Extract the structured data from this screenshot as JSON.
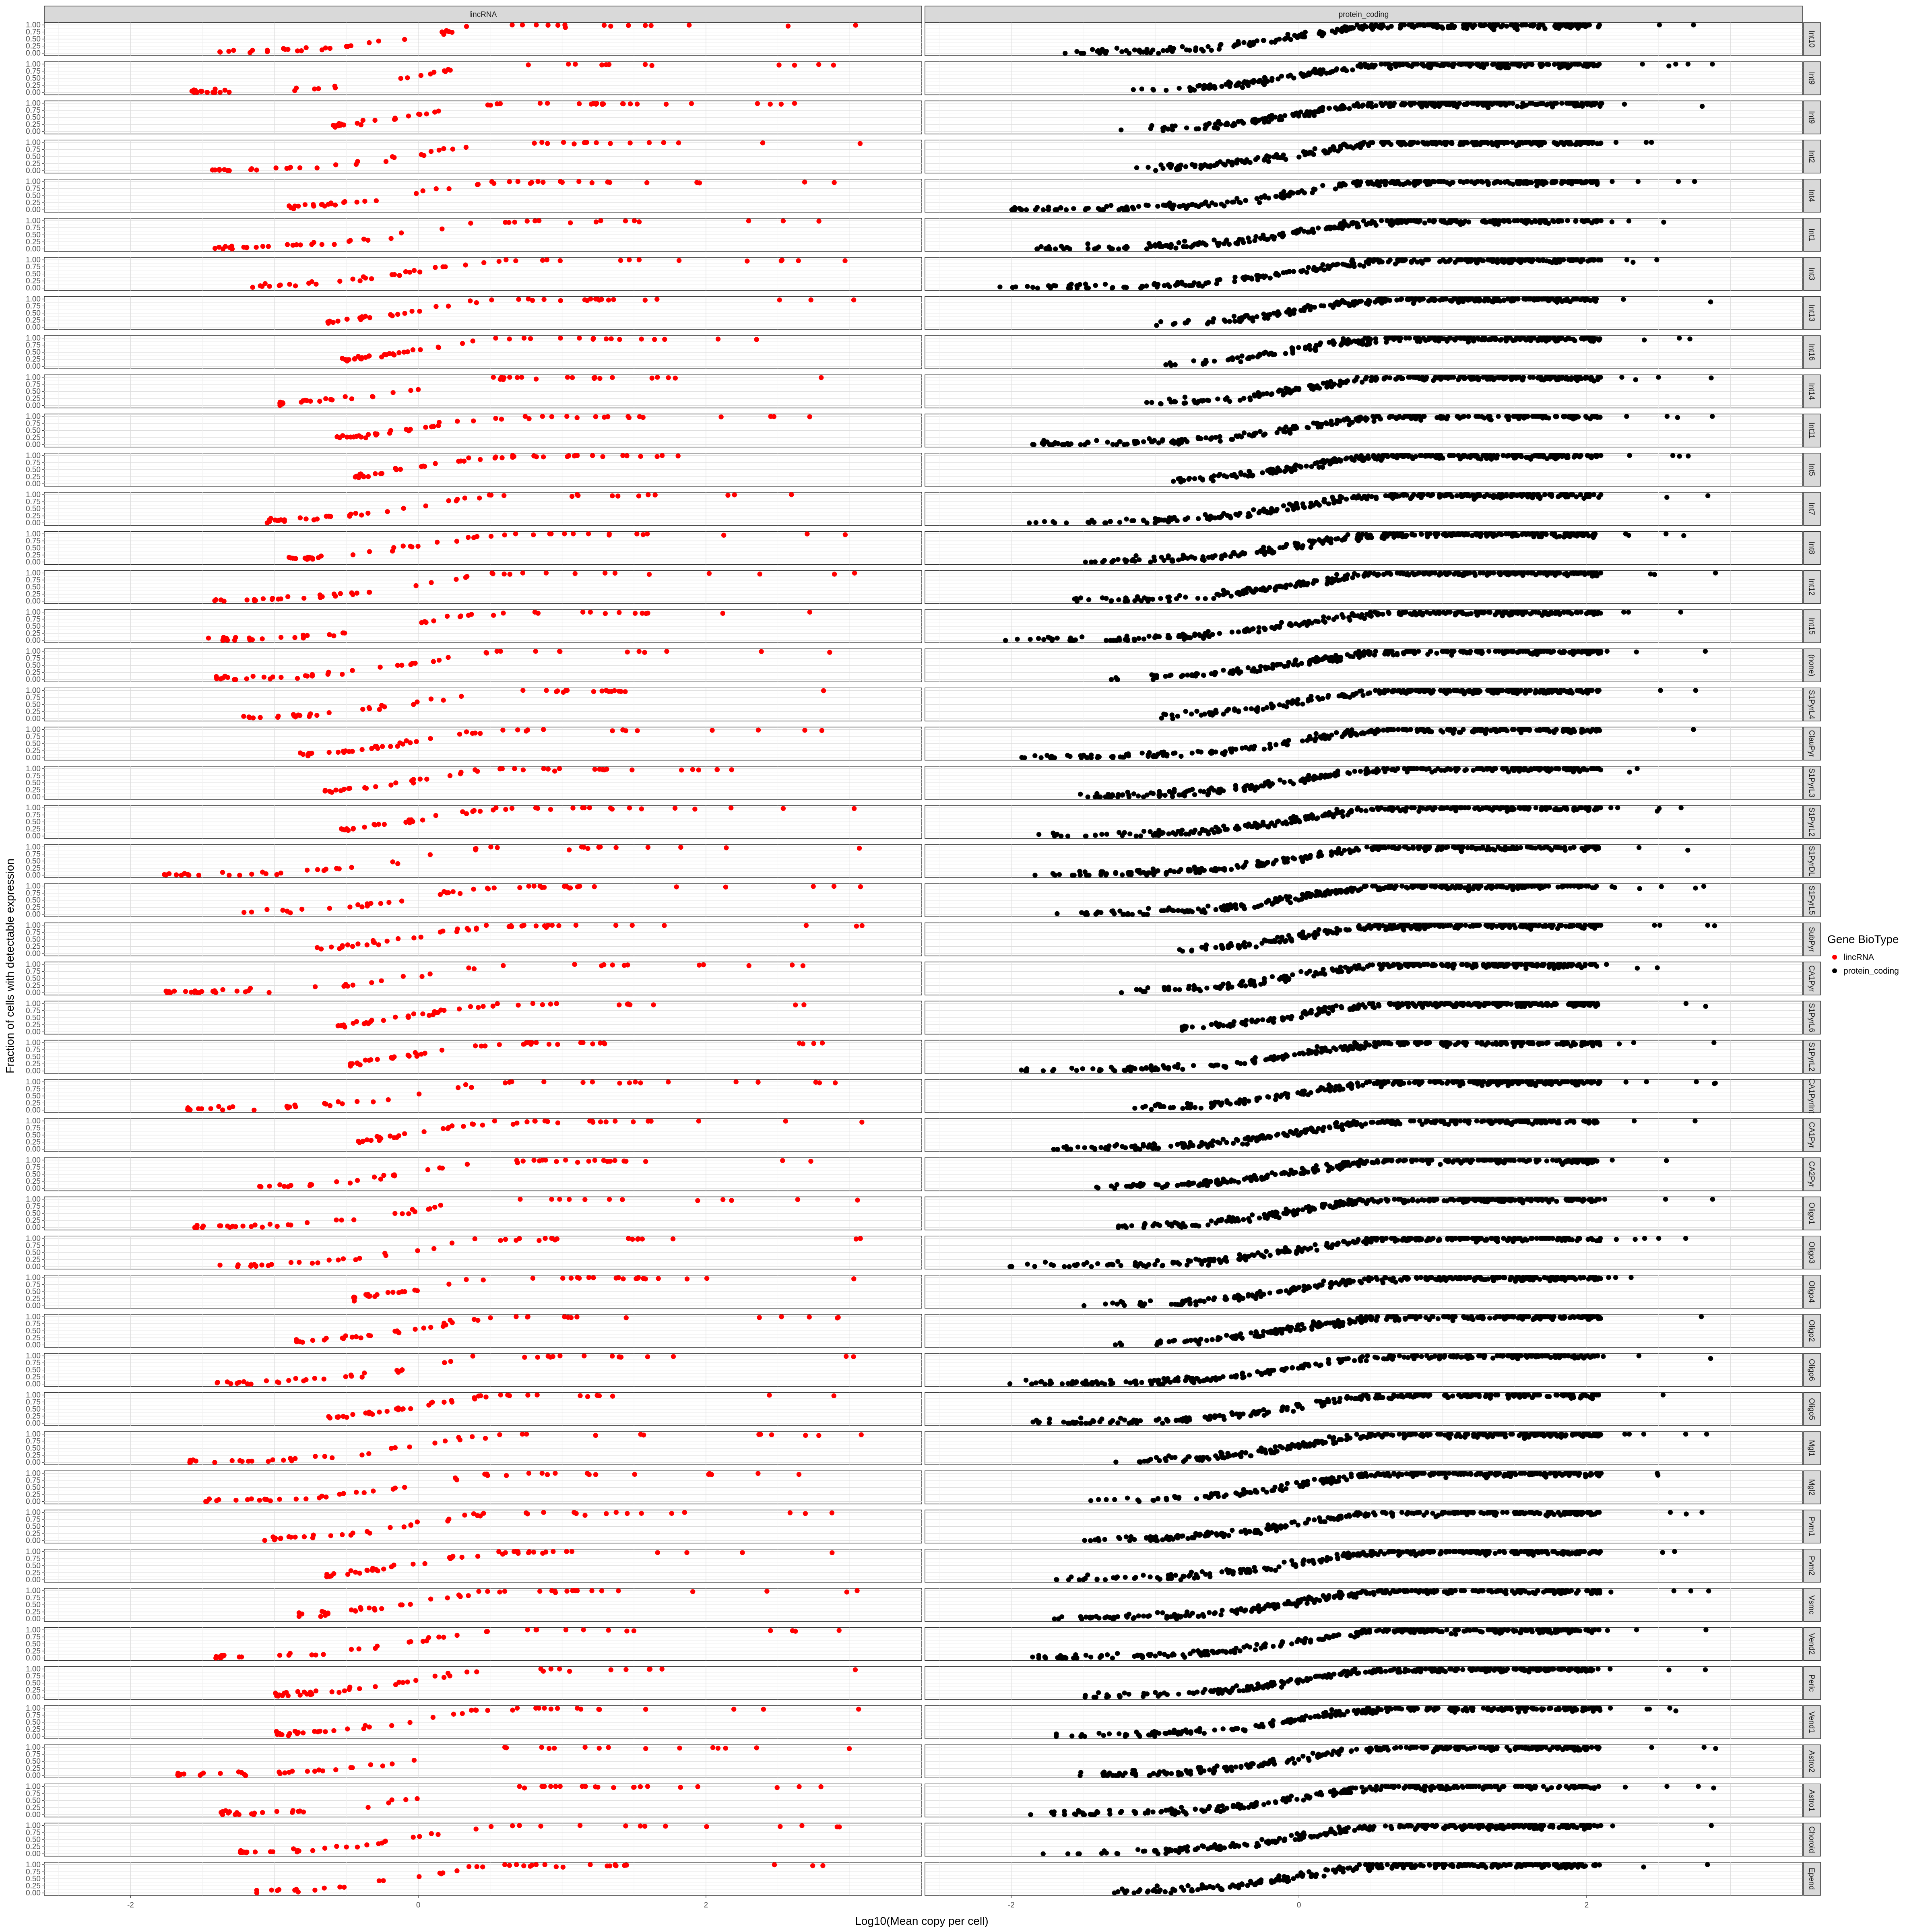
{
  "chart_data": {
    "type": "scatter",
    "facet_columns": [
      "lincRNA",
      "protein_coding"
    ],
    "facet_rows": [
      "Int10",
      "Int9",
      "Int9",
      "Int2",
      "Int4",
      "Int1",
      "Int3",
      "Int13",
      "Int16",
      "Int14",
      "Int11",
      "Int5",
      "Int7",
      "Int8",
      "Int12",
      "Int15",
      "(none)",
      "S1PyrL4",
      "ClauPyr",
      "S1PyrL3",
      "S1PyrL2",
      "S1PyrDL",
      "S1PyrL5",
      "SubPyr",
      "CA1Pyr",
      "S1PyrL6",
      "S1PyrL2",
      "CA1PyrInt",
      "CA1Pyr",
      "CA2Pyr",
      "Oligo1",
      "Oligo3",
      "Oligo4",
      "Oligo2",
      "Oligo6",
      "Oligo5",
      "Mgl1",
      "Mgl2",
      "Pvm1",
      "Pvm2",
      "Vsmc",
      "Vend2",
      "Peric",
      "Vend1",
      "Astro2",
      "Astro1",
      "Choroid",
      "Epend"
    ],
    "xlabel": "Log10(Mean copy per cell)",
    "ylabel": "Fraction of cells with detectable expression",
    "xlim": [
      -2.6,
      3.5
    ],
    "ylim": [
      0,
      1
    ],
    "x_ticks": [
      "-2",
      "0",
      "2"
    ],
    "y_ticks": [
      "0.00",
      "0.25",
      "0.50",
      "0.75",
      "1.00"
    ],
    "grid": true,
    "series": [
      {
        "name": "lincRNA",
        "color": "#ff0000"
      },
      {
        "name": "protein_coding",
        "color": "#000000"
      }
    ],
    "points_per_panel_approx": {
      "lincRNA": 45,
      "protein_coding": 260
    },
    "legend": {
      "title": "Gene BioType",
      "placement": "right"
    }
  },
  "figure": {
    "xlabel": "Log10(Mean copy per cell)",
    "ylabel": "Fraction of cells with detectable expression",
    "legend_title": "Gene BioType",
    "legend_items": [
      {
        "label": "lincRNA",
        "color": "#ff0000"
      },
      {
        "label": "protein_coding",
        "color": "#000000"
      }
    ]
  }
}
